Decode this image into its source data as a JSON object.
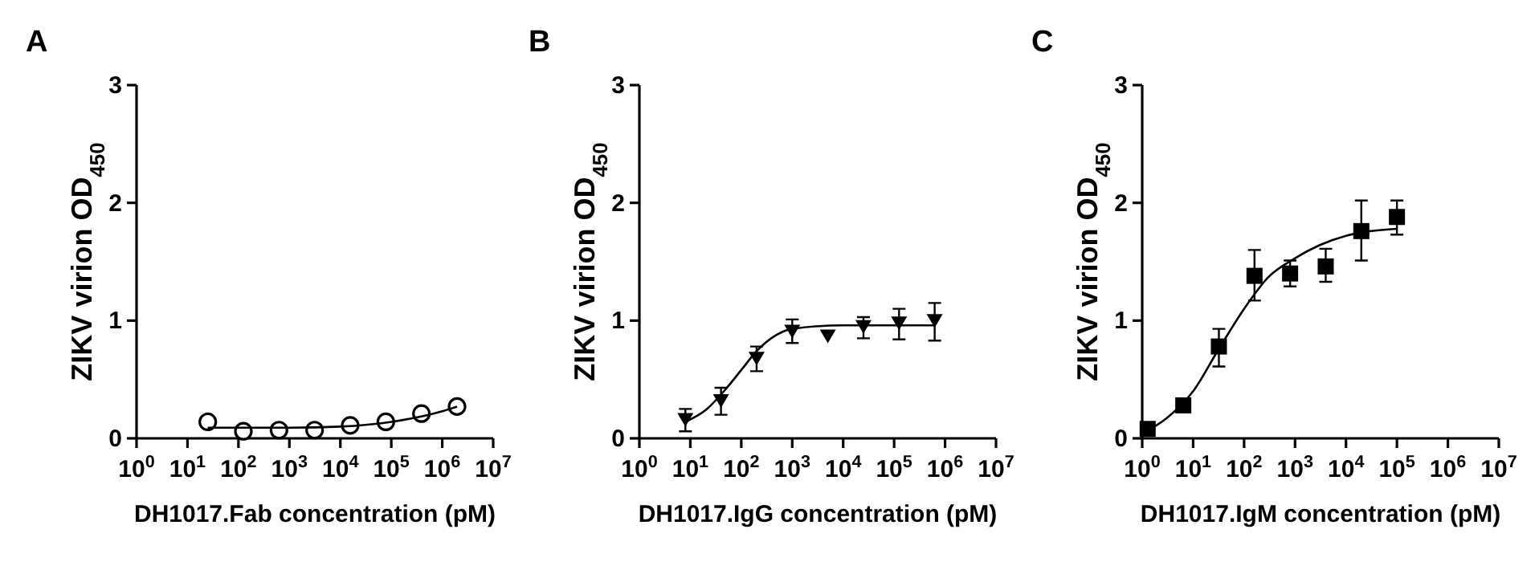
{
  "chart_data": [
    {
      "type": "scatter",
      "title": "A",
      "xlabel": "DH1017.Fab concentration (pM)",
      "ylabel": "ZIKV virion OD$_{450}$",
      "log": "x",
      "xlim": [
        1,
        10000000
      ],
      "ylim": [
        0,
        3
      ],
      "yticks": [
        0,
        1,
        2,
        3
      ],
      "xticks": [
        {
          "value": 1,
          "label": "10$^{0}$"
        },
        {
          "value": 10,
          "label": "10$^{1}$"
        },
        {
          "value": 100,
          "label": "10$^{2}$"
        },
        {
          "value": 1000,
          "label": "10$^{3}$"
        },
        {
          "value": 10000,
          "label": "10$^{4}$"
        },
        {
          "value": 100000,
          "label": "10$^{5}$"
        },
        {
          "value": 1000000,
          "label": "10$^{6}$"
        },
        {
          "value": 10000000,
          "label": "10$^{7}$"
        }
      ],
      "series": [
        {
          "marker": "circle",
          "color": "#000000",
          "x": [
            25,
            125,
            625,
            3125,
            15625,
            78125,
            390625,
            1953125
          ],
          "values": [
            0.14,
            0.06,
            0.07,
            0.07,
            0.11,
            0.14,
            0.21,
            0.27
          ]
        },
        {
          "type": "line",
          "marker": "none",
          "color": "#000000",
          "x": [
            25,
            1000,
            10000,
            100000,
            1000000,
            1953125
          ],
          "values": [
            0.09,
            0.09,
            0.1,
            0.14,
            0.23,
            0.27
          ]
        }
      ]
    },
    {
      "type": "scatter",
      "title": "B",
      "xlabel": "DH1017.IgG concentration (pM)",
      "ylabel": "ZIKV virion OD$_{450}$",
      "log": "x",
      "xlim": [
        1,
        10000000
      ],
      "ylim": [
        0,
        3
      ],
      "yticks": [
        0,
        1,
        2,
        3
      ],
      "xticks": [
        {
          "value": 1,
          "label": "10$^{0}$"
        },
        {
          "value": 10,
          "label": "10$^{1}$"
        },
        {
          "value": 100,
          "label": "10$^{2}$"
        },
        {
          "value": 1000,
          "label": "10$^{3}$"
        },
        {
          "value": 10000,
          "label": "10$^{4}$"
        },
        {
          "value": 100000,
          "label": "10$^{5}$"
        },
        {
          "value": 1000000,
          "label": "10$^{6}$"
        },
        {
          "value": 10000000,
          "label": "10$^{7}$"
        }
      ],
      "series": [
        {
          "marker": "triangle",
          "color": "#000000",
          "x": [
            8,
            40,
            200,
            1000,
            5000,
            25000,
            125000,
            625000
          ],
          "values": [
            0.16,
            0.32,
            0.68,
            0.91,
            0.87,
            0.95,
            0.98,
            1.0
          ],
          "errors": [
            [
              0.06,
              0.25
            ],
            [
              0.2,
              0.43
            ],
            [
              0.57,
              0.78
            ],
            [
              0.81,
              1.01
            ],
            null,
            [
              0.85,
              1.03
            ],
            [
              0.84,
              1.1
            ],
            [
              0.83,
              1.15
            ]
          ]
        },
        {
          "type": "line",
          "marker": "none",
          "color": "#000000",
          "x": [
            8,
            20,
            50,
            100,
            200,
            500,
            1000,
            10000,
            625000
          ],
          "values": [
            0.14,
            0.24,
            0.42,
            0.58,
            0.74,
            0.88,
            0.93,
            0.96,
            0.96
          ]
        }
      ]
    },
    {
      "type": "scatter",
      "title": "C",
      "xlabel": "DH1017.IgM concentration (pM)",
      "ylabel": "ZIKV virion OD$_{450}$",
      "log": "x",
      "xlim": [
        1,
        10000000
      ],
      "ylim": [
        0,
        3
      ],
      "yticks": [
        0,
        1,
        2,
        3
      ],
      "xticks": [
        {
          "value": 1,
          "label": "10$^{0}$"
        },
        {
          "value": 10,
          "label": "10$^{1}$"
        },
        {
          "value": 100,
          "label": "10$^{2}$"
        },
        {
          "value": 1000,
          "label": "10$^{3}$"
        },
        {
          "value": 10000,
          "label": "10$^{4}$"
        },
        {
          "value": 100000,
          "label": "10$^{5}$"
        },
        {
          "value": 1000000,
          "label": "10$^{6}$"
        },
        {
          "value": 10000000,
          "label": "10$^{7}$"
        }
      ],
      "series": [
        {
          "marker": "square",
          "color": "#000000",
          "x": [
            1.28,
            6.4,
            32,
            160,
            800,
            4000,
            20000,
            100000
          ],
          "values": [
            0.08,
            0.28,
            0.78,
            1.38,
            1.4,
            1.46,
            1.76,
            1.88
          ],
          "errors": [
            null,
            null,
            [
              0.61,
              0.93
            ],
            [
              1.17,
              1.6
            ],
            [
              1.29,
              1.51
            ],
            [
              1.33,
              1.61
            ],
            [
              1.51,
              2.02
            ],
            [
              1.73,
              2.02
            ]
          ]
        },
        {
          "type": "line",
          "marker": "none",
          "color": "#000000",
          "x": [
            1,
            3,
            10,
            30,
            100,
            300,
            1000,
            3000,
            10000,
            30000,
            100000
          ],
          "values": [
            0.04,
            0.17,
            0.4,
            0.74,
            1.1,
            1.37,
            1.53,
            1.64,
            1.72,
            1.76,
            1.78
          ]
        }
      ]
    }
  ]
}
